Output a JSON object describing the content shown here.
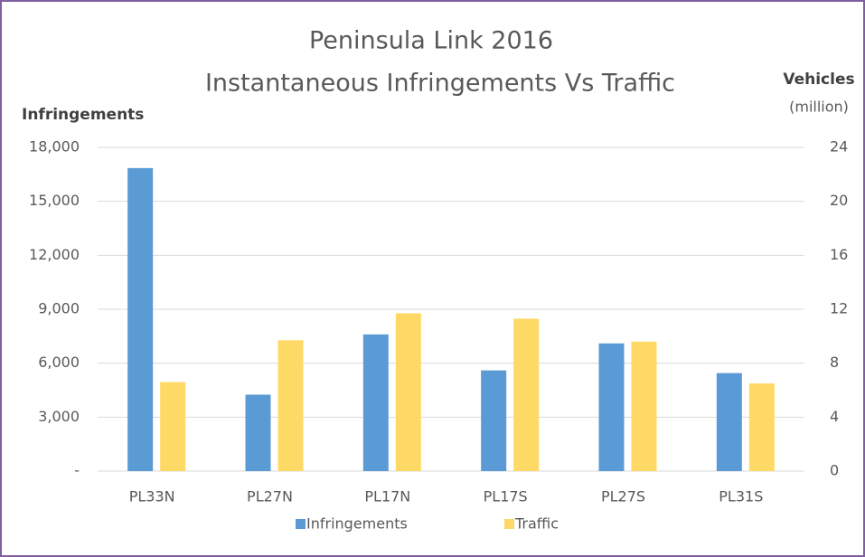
{
  "chart_data": {
    "type": "bar",
    "title": "Peninsula Link 2016",
    "subtitle": "Instantaneous Infringements Vs Traffic",
    "ylabel": "Infringements",
    "y2label": "Vehicles",
    "y2label_unit": "(million)",
    "categories": [
      "PL33N",
      "PL27N",
      "PL17N",
      "PL17S",
      "PL27S",
      "PL31S"
    ],
    "series": [
      {
        "name": "Infringements",
        "color": "#5b9bd5",
        "values": [
          16850,
          4250,
          7600,
          5600,
          7100,
          5450
        ]
      },
      {
        "name": "Traffic",
        "color": "#ffd966",
        "axis": "y2",
        "values": [
          6.6,
          9.7,
          11.7,
          11.3,
          9.6,
          6.5
        ]
      }
    ],
    "ylim": [
      0,
      18000
    ],
    "yticks": [
      {
        "value": 0,
        "label": "-"
      },
      {
        "value": 3000,
        "label": "3,000"
      },
      {
        "value": 6000,
        "label": "6,000"
      },
      {
        "value": 9000,
        "label": "9,000"
      },
      {
        "value": 12000,
        "label": "12,000"
      },
      {
        "value": 15000,
        "label": "15,000"
      },
      {
        "value": 18000,
        "label": "18,000"
      }
    ],
    "y2lim": [
      0,
      24
    ],
    "y2ticks": [
      0,
      4,
      8,
      12,
      16,
      20,
      24
    ],
    "grid": true,
    "legend": "bottom"
  }
}
